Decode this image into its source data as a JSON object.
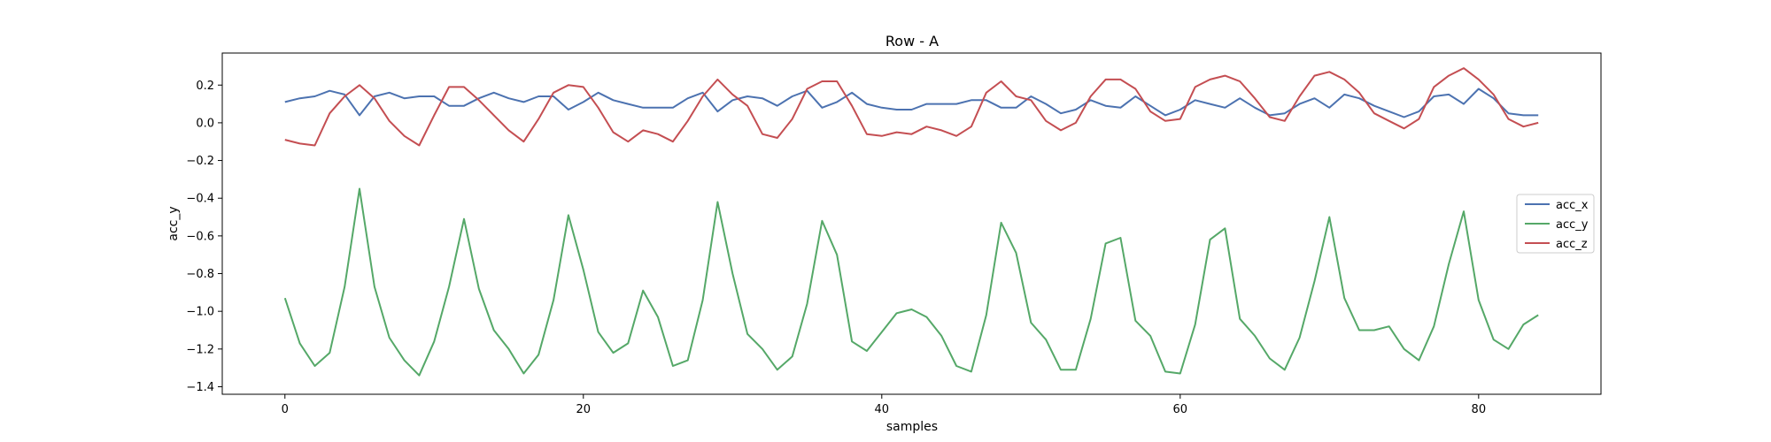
{
  "chart_data": {
    "type": "line",
    "title": "Row - A",
    "xlabel": "samples",
    "ylabel": "acc_y",
    "xlim": [
      -4.2,
      88.2
    ],
    "ylim": [
      -1.44,
      0.37
    ],
    "xticks": [
      0,
      20,
      40,
      60,
      80
    ],
    "yticks": [
      0.2,
      0.0,
      -0.2,
      -0.4,
      -0.6,
      -0.8,
      -1.0,
      -1.2,
      -1.4
    ],
    "ytick_labels": [
      "0.2",
      "0.0",
      "−0.2",
      "−0.4",
      "−0.6",
      "−0.8",
      "−1.0",
      "−1.2",
      "−1.4"
    ],
    "grid": false,
    "legend_position": "center-right",
    "x": [
      0,
      1,
      2,
      3,
      4,
      5,
      6,
      7,
      8,
      9,
      10,
      11,
      12,
      13,
      14,
      15,
      16,
      17,
      18,
      19,
      20,
      21,
      22,
      23,
      24,
      25,
      26,
      27,
      28,
      29,
      30,
      31,
      32,
      33,
      34,
      35,
      36,
      37,
      38,
      39,
      40,
      41,
      42,
      43,
      44,
      45,
      46,
      47,
      48,
      49,
      50,
      51,
      52,
      53,
      54,
      55,
      56,
      57,
      58,
      59,
      60,
      61,
      62,
      63,
      64,
      65,
      66,
      67,
      68,
      69,
      70,
      71,
      72,
      73,
      74,
      75,
      76,
      77,
      78,
      79,
      80,
      81,
      82,
      83,
      84
    ],
    "series": [
      {
        "name": "acc_x",
        "color": "#4c72b0",
        "values": [
          0.11,
          0.13,
          0.14,
          0.17,
          0.15,
          0.04,
          0.14,
          0.16,
          0.13,
          0.14,
          0.14,
          0.09,
          0.09,
          0.13,
          0.16,
          0.13,
          0.11,
          0.14,
          0.14,
          0.07,
          0.11,
          0.16,
          0.12,
          0.1,
          0.08,
          0.08,
          0.08,
          0.13,
          0.16,
          0.06,
          0.12,
          0.14,
          0.13,
          0.09,
          0.14,
          0.17,
          0.08,
          0.11,
          0.16,
          0.1,
          0.08,
          0.07,
          0.07,
          0.1,
          0.1,
          0.1,
          0.12,
          0.12,
          0.08,
          0.08,
          0.14,
          0.1,
          0.05,
          0.07,
          0.12,
          0.09,
          0.08,
          0.14,
          0.09,
          0.04,
          0.07,
          0.12,
          0.1,
          0.08,
          0.13,
          0.08,
          0.04,
          0.05,
          0.1,
          0.13,
          0.08,
          0.15,
          0.13,
          0.09,
          0.06,
          0.03,
          0.06,
          0.14,
          0.15,
          0.1,
          0.18,
          0.13,
          0.05,
          0.04,
          0.04
        ]
      },
      {
        "name": "acc_y",
        "color": "#55a868",
        "values": [
          -0.93,
          -1.17,
          -1.29,
          -1.22,
          -0.87,
          -0.35,
          -0.87,
          -1.14,
          -1.26,
          -1.34,
          -1.16,
          -0.87,
          -0.51,
          -0.88,
          -1.1,
          -1.2,
          -1.33,
          -1.23,
          -0.94,
          -0.49,
          -0.78,
          -1.11,
          -1.22,
          -1.17,
          -0.89,
          -1.03,
          -1.29,
          -1.26,
          -0.94,
          -0.42,
          -0.8,
          -1.12,
          -1.2,
          -1.31,
          -1.24,
          -0.96,
          -0.52,
          -0.7,
          -1.16,
          -1.21,
          -1.11,
          -1.01,
          -0.99,
          -1.03,
          -1.13,
          -1.29,
          -1.32,
          -1.02,
          -0.53,
          -0.69,
          -1.06,
          -1.15,
          -1.31,
          -1.31,
          -1.04,
          -0.64,
          -0.61,
          -1.05,
          -1.13,
          -1.32,
          -1.33,
          -1.07,
          -0.62,
          -0.56,
          -1.04,
          -1.13,
          -1.25,
          -1.31,
          -1.14,
          -0.84,
          -0.5,
          -0.93,
          -1.1,
          -1.1,
          -1.08,
          -1.2,
          -1.26,
          -1.08,
          -0.75,
          -0.47,
          -0.94,
          -1.15,
          -1.2,
          -1.07,
          -1.02
        ]
      },
      {
        "name": "acc_z",
        "color": "#c44e52",
        "values": [
          -0.09,
          -0.11,
          -0.12,
          0.05,
          0.14,
          0.2,
          0.13,
          0.01,
          -0.07,
          -0.12,
          0.04,
          0.19,
          0.19,
          0.12,
          0.04,
          -0.04,
          -0.1,
          0.02,
          0.16,
          0.2,
          0.19,
          0.08,
          -0.05,
          -0.1,
          -0.04,
          -0.06,
          -0.1,
          0.01,
          0.14,
          0.23,
          0.15,
          0.09,
          -0.06,
          -0.08,
          0.02,
          0.18,
          0.22,
          0.22,
          0.09,
          -0.06,
          -0.07,
          -0.05,
          -0.06,
          -0.02,
          -0.04,
          -0.07,
          -0.02,
          0.16,
          0.22,
          0.14,
          0.12,
          0.01,
          -0.04,
          0.0,
          0.14,
          0.23,
          0.23,
          0.18,
          0.06,
          0.01,
          0.02,
          0.19,
          0.23,
          0.25,
          0.22,
          0.13,
          0.03,
          0.01,
          0.14,
          0.25,
          0.27,
          0.23,
          0.16,
          0.05,
          0.01,
          -0.03,
          0.02,
          0.19,
          0.25,
          0.29,
          0.23,
          0.15,
          0.02,
          -0.02,
          0.0
        ]
      }
    ]
  }
}
